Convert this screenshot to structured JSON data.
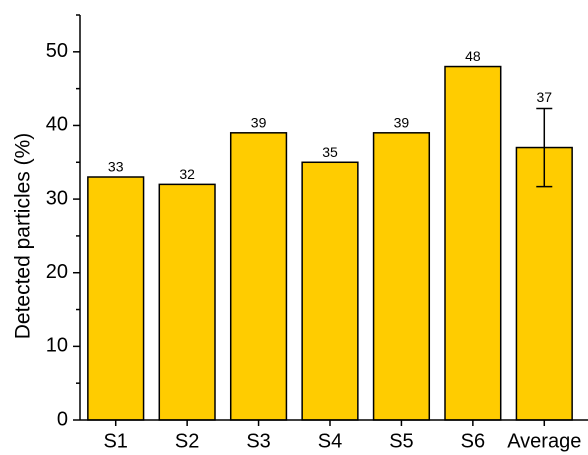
{
  "chart_data": {
    "type": "bar",
    "y_label": "Detected particles (%)",
    "categories": [
      "S1",
      "S2",
      "S3",
      "S4",
      "S5",
      "S6",
      "Average"
    ],
    "values": [
      33,
      32,
      39,
      35,
      39,
      48,
      37
    ],
    "errors": [
      null,
      null,
      null,
      null,
      null,
      null,
      5.3
    ],
    "color": "#ffcc00",
    "ylim": [
      0,
      55
    ],
    "yticks": [
      0,
      10,
      20,
      30,
      40,
      50
    ],
    "grid": false
  }
}
